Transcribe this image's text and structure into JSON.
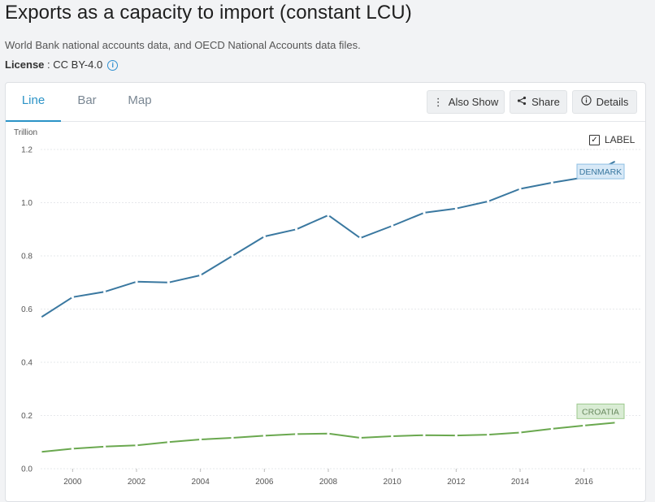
{
  "page": {
    "title": "Exports as a capacity to import (constant LCU)",
    "source": "World Bank national accounts data, and OECD National Accounts data files.",
    "license_label": "License",
    "license_value": " : CC BY-4.0"
  },
  "tabs": [
    {
      "label": "Line",
      "active": true
    },
    {
      "label": "Bar",
      "active": false
    },
    {
      "label": "Map",
      "active": false
    }
  ],
  "toolbar": {
    "also_show": "Also Show",
    "share": "Share",
    "details": "Details"
  },
  "label_toggle": {
    "label": "LABEL",
    "checked": true
  },
  "chart_data": {
    "type": "line",
    "ylabel": "Trillion",
    "ylim": [
      0,
      1.2
    ],
    "y_ticks": [
      "0.0",
      "0.2",
      "0.4",
      "0.6",
      "0.8",
      "1.0",
      "1.2"
    ],
    "x_ticks": [
      "2000",
      "2002",
      "2004",
      "2006",
      "2008",
      "2010",
      "2012",
      "2014",
      "2016"
    ],
    "x": [
      1999,
      2000,
      2001,
      2002,
      2003,
      2004,
      2005,
      2006,
      2007,
      2008,
      2009,
      2010,
      2011,
      2012,
      2013,
      2014,
      2015,
      2016,
      2017
    ],
    "grid": true,
    "series": [
      {
        "name": "DENMARK",
        "color": "#3a78a0",
        "label_bg": "#d8e9f7",
        "label_border": "#8ebfe3",
        "label_color": "#3a78a0",
        "values": [
          0.568,
          0.645,
          0.665,
          0.703,
          0.7,
          0.727,
          0.8,
          0.873,
          0.9,
          0.953,
          0.867,
          0.913,
          0.962,
          0.978,
          1.005,
          1.052,
          1.075,
          1.095,
          1.157
        ]
      },
      {
        "name": "CROATIA",
        "color": "#6aa84f",
        "label_bg": "#d9ecd4",
        "label_border": "#9cc98c",
        "label_color": "#6a8a60",
        "values": [
          0.063,
          0.075,
          0.083,
          0.088,
          0.1,
          0.11,
          0.116,
          0.124,
          0.13,
          0.132,
          0.116,
          0.122,
          0.126,
          0.125,
          0.128,
          0.136,
          0.15,
          0.162,
          0.173
        ]
      }
    ]
  }
}
